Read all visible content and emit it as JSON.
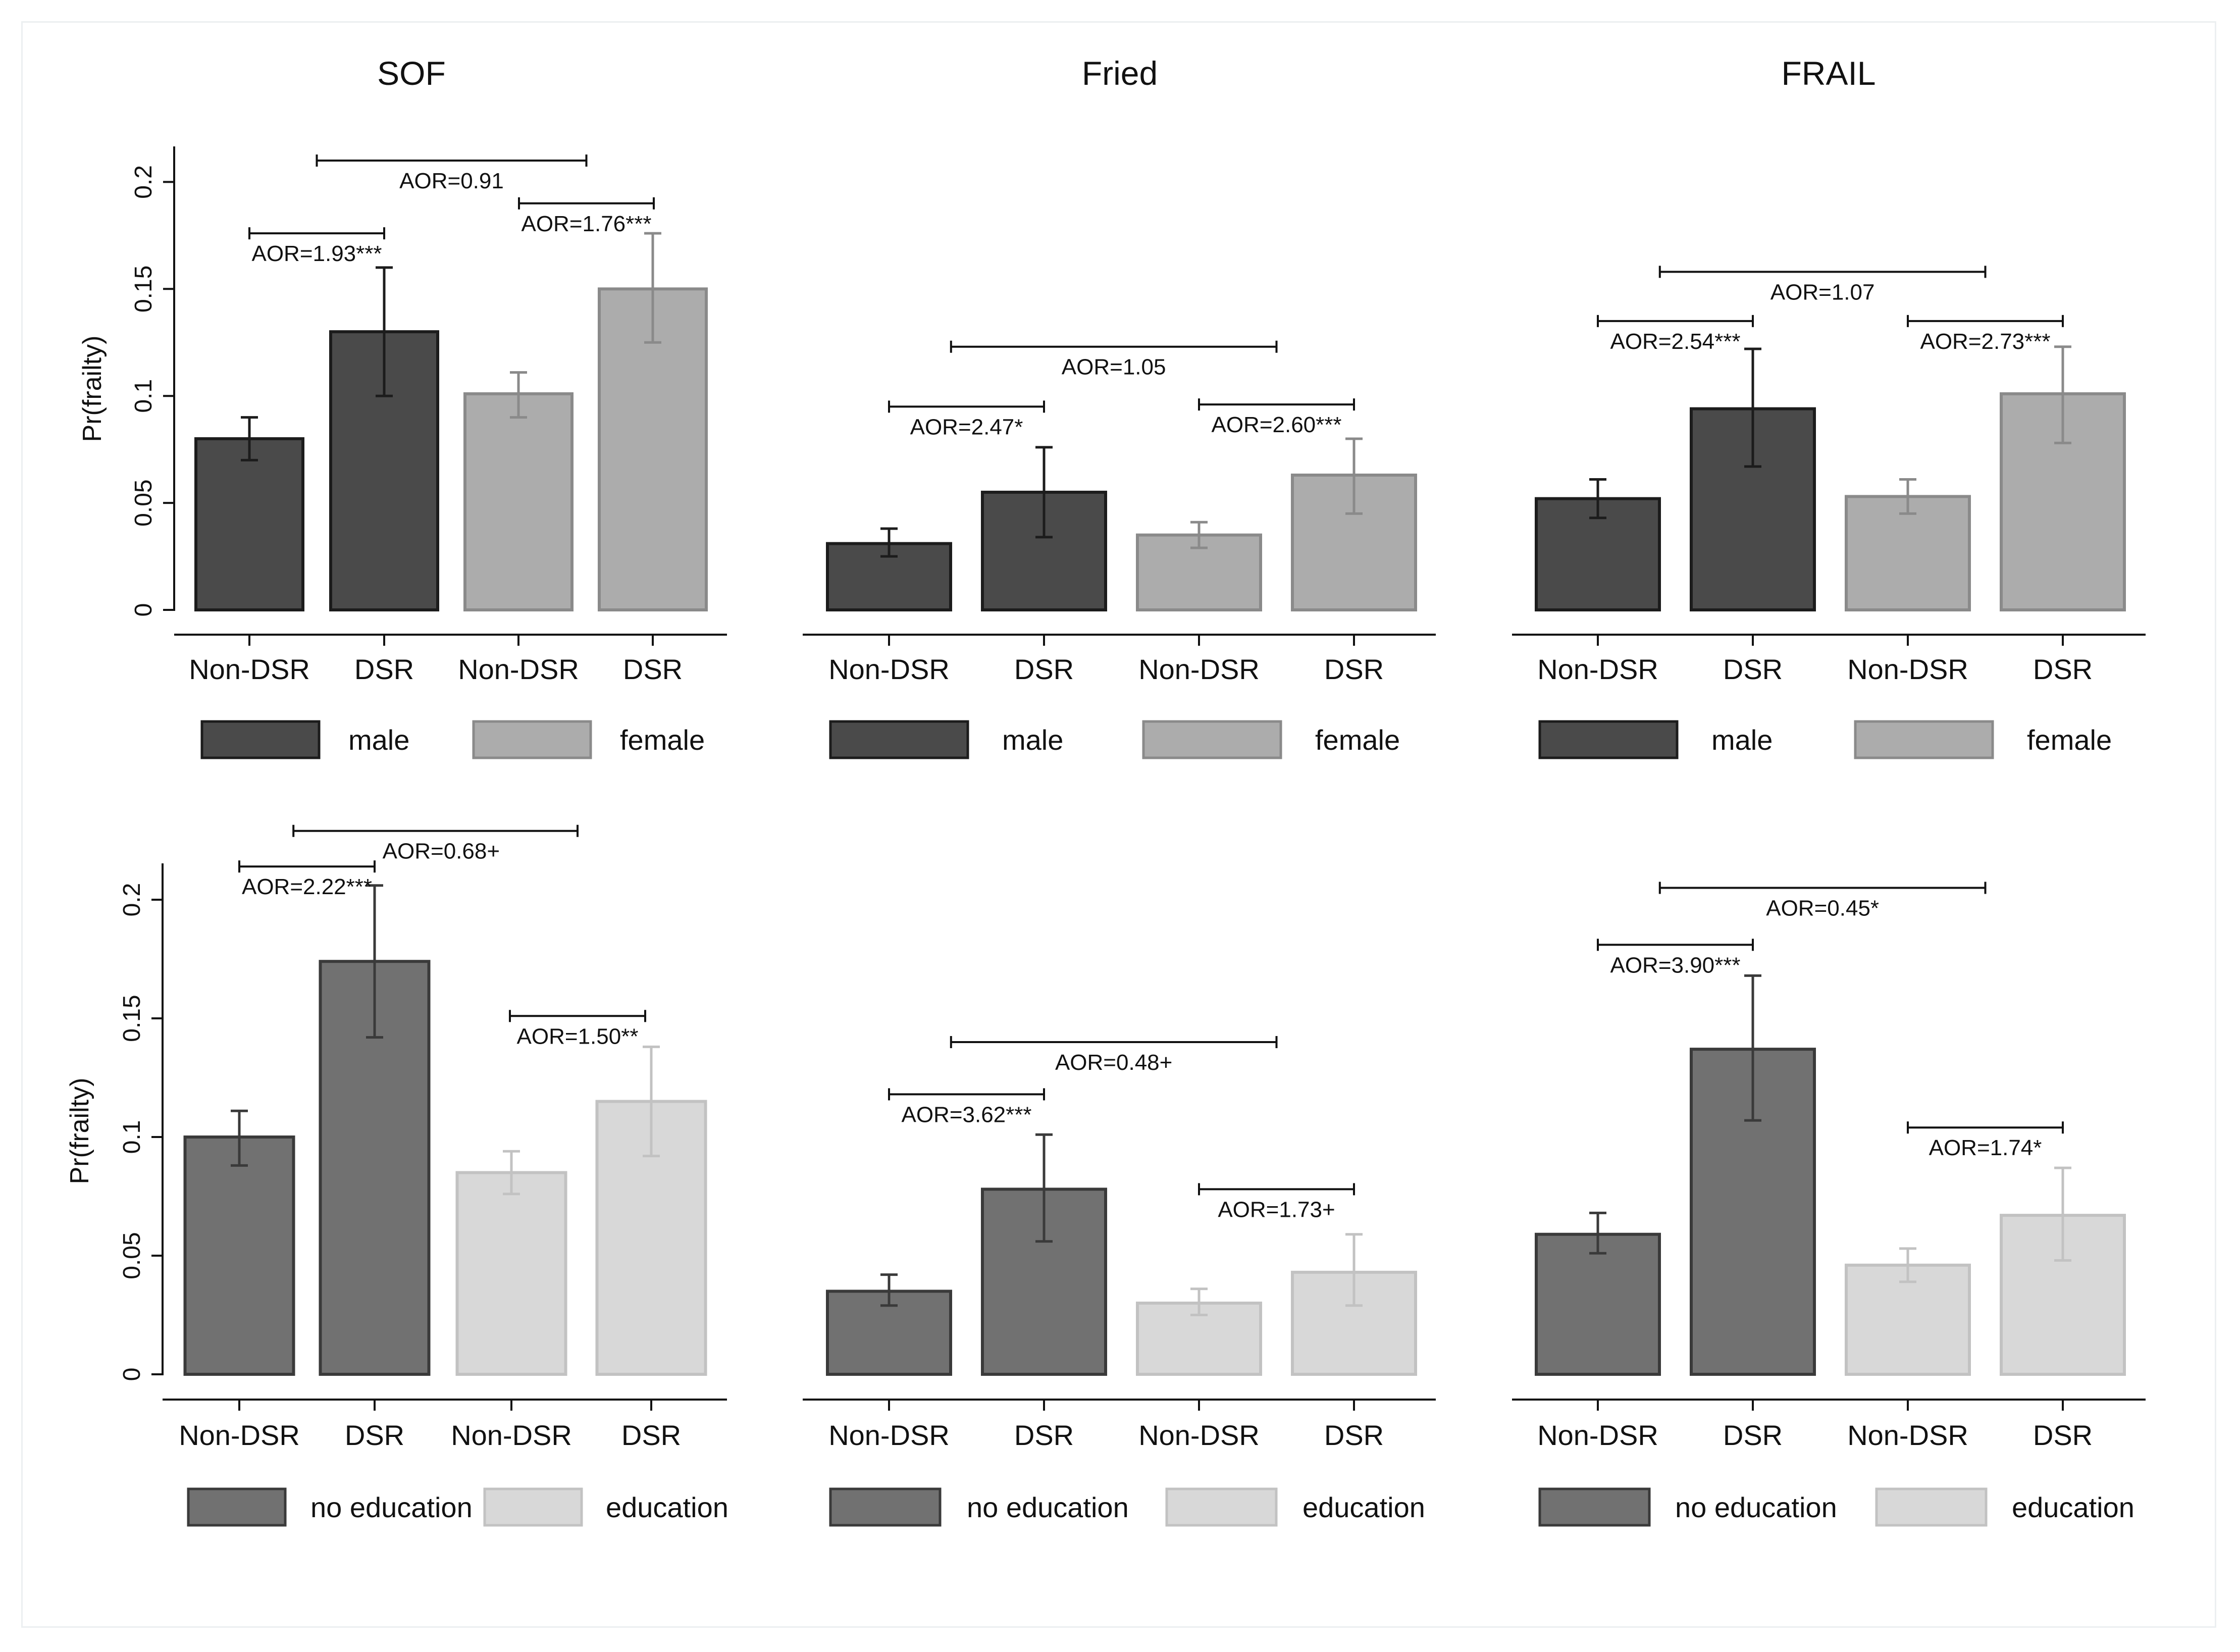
{
  "axis_label": "Pr(frailty)",
  "chart_data": [
    {
      "type": "bar",
      "title": "SOF",
      "ylabel": "Pr(frailty)",
      "ylim": [
        0,
        0.22
      ],
      "yticks": [
        0,
        0.05,
        0.1,
        0.15,
        0.2
      ],
      "ytick_labels": [
        "0",
        "0.05",
        "0.1",
        "0.15",
        "0.2"
      ],
      "categories": [
        "Non-DSR",
        "DSR",
        "Non-DSR",
        "DSR"
      ],
      "values": [
        0.08,
        0.13,
        0.101,
        0.15
      ],
      "ci_low": [
        0.07,
        0.1,
        0.09,
        0.125
      ],
      "ci_high": [
        0.09,
        0.16,
        0.111,
        0.176
      ],
      "groups": [
        0,
        0,
        1,
        1
      ],
      "legend": [
        "male",
        "female"
      ],
      "annotations": [
        {
          "label": "AOR=1.93***",
          "from": 0,
          "to": 1,
          "level": 0.176,
          "text_pos": "below"
        },
        {
          "label": "AOR=0.91",
          "from": 0.5,
          "to": 2.5,
          "level": 0.21,
          "text_pos": "below"
        },
        {
          "label": "AOR=1.76***",
          "from": 2,
          "to": 3,
          "level": 0.19,
          "text_pos": "below"
        }
      ]
    },
    {
      "type": "bar",
      "title": "Fried",
      "ylabel": "",
      "ylim": [
        0,
        0.22
      ],
      "categories": [
        "Non-DSR",
        "DSR",
        "Non-DSR",
        "DSR"
      ],
      "values": [
        0.031,
        0.055,
        0.035,
        0.063
      ],
      "ci_low": [
        0.025,
        0.034,
        0.029,
        0.045
      ],
      "ci_high": [
        0.038,
        0.076,
        0.041,
        0.08
      ],
      "groups": [
        0,
        0,
        1,
        1
      ],
      "legend": [
        "male",
        "female"
      ],
      "annotations": [
        {
          "label": "AOR=2.47*",
          "from": 0,
          "to": 1,
          "level": 0.095,
          "text_pos": "below"
        },
        {
          "label": "AOR=1.05",
          "from": 0.4,
          "to": 2.5,
          "level": 0.123,
          "text_pos": "below"
        },
        {
          "label": "AOR=2.60***",
          "from": 2,
          "to": 3,
          "level": 0.096,
          "text_pos": "below"
        }
      ]
    },
    {
      "type": "bar",
      "title": "FRAIL",
      "ylabel": "",
      "ylim": [
        0,
        0.22
      ],
      "categories": [
        "Non-DSR",
        "DSR",
        "Non-DSR",
        "DSR"
      ],
      "values": [
        0.052,
        0.094,
        0.053,
        0.101
      ],
      "ci_low": [
        0.043,
        0.067,
        0.045,
        0.078
      ],
      "ci_high": [
        0.061,
        0.122,
        0.061,
        0.123
      ],
      "groups": [
        0,
        0,
        1,
        1
      ],
      "legend": [
        "male",
        "female"
      ],
      "annotations": [
        {
          "label": "AOR=2.54***",
          "from": 0,
          "to": 1,
          "level": 0.135,
          "text_pos": "below"
        },
        {
          "label": "AOR=1.07",
          "from": 0.4,
          "to": 2.5,
          "level": 0.158,
          "text_pos": "below"
        },
        {
          "label": "AOR=2.73***",
          "from": 2,
          "to": 3,
          "level": 0.135,
          "text_pos": "below"
        }
      ]
    },
    {
      "type": "bar",
      "title": "",
      "ylabel": "Pr(frailty)",
      "ylim": [
        0,
        0.21
      ],
      "yticks": [
        0,
        0.05,
        0.1,
        0.15,
        0.2
      ],
      "ytick_labels": [
        "0",
        "0.05",
        "0.1",
        "0.15",
        "0.2"
      ],
      "categories": [
        "Non-DSR",
        "DSR",
        "Non-DSR",
        "DSR"
      ],
      "values": [
        0.1,
        0.174,
        0.085,
        0.115
      ],
      "ci_low": [
        0.088,
        0.142,
        0.076,
        0.092
      ],
      "ci_high": [
        0.111,
        0.206,
        0.094,
        0.138
      ],
      "groups": [
        0,
        0,
        1,
        1
      ],
      "legend": [
        "no education",
        "education"
      ],
      "annotations": [
        {
          "label": "AOR=2.22***",
          "from": 0,
          "to": 1,
          "level": 0.214,
          "text_pos": "below"
        },
        {
          "label": "AOR=0.68+",
          "from": 0.4,
          "to": 2.5,
          "level": 0.229,
          "text_pos": "below_right"
        },
        {
          "label": "AOR=1.50**",
          "from": 2,
          "to": 3,
          "level": 0.151,
          "text_pos": "below"
        }
      ]
    },
    {
      "type": "bar",
      "title": "",
      "ylabel": "",
      "ylim": [
        0,
        0.21
      ],
      "categories": [
        "Non-DSR",
        "DSR",
        "Non-DSR",
        "DSR"
      ],
      "values": [
        0.035,
        0.078,
        0.03,
        0.043
      ],
      "ci_low": [
        0.029,
        0.056,
        0.025,
        0.029
      ],
      "ci_high": [
        0.042,
        0.101,
        0.036,
        0.059
      ],
      "groups": [
        0,
        0,
        1,
        1
      ],
      "legend": [
        "no education",
        "education"
      ],
      "annotations": [
        {
          "label": "AOR=3.62***",
          "from": 0,
          "to": 1,
          "level": 0.118,
          "text_pos": "below"
        },
        {
          "label": "AOR=0.48+",
          "from": 0.4,
          "to": 2.5,
          "level": 0.14,
          "text_pos": "below"
        },
        {
          "label": "AOR=1.73+",
          "from": 2,
          "to": 3,
          "level": 0.078,
          "text_pos": "below"
        }
      ]
    },
    {
      "type": "bar",
      "title": "",
      "ylabel": "",
      "ylim": [
        0,
        0.21
      ],
      "categories": [
        "Non-DSR",
        "DSR",
        "Non-DSR",
        "DSR"
      ],
      "values": [
        0.059,
        0.137,
        0.046,
        0.067
      ],
      "ci_low": [
        0.051,
        0.107,
        0.039,
        0.048
      ],
      "ci_high": [
        0.068,
        0.168,
        0.053,
        0.087
      ],
      "groups": [
        0,
        0,
        1,
        1
      ],
      "legend": [
        "no education",
        "education"
      ],
      "annotations": [
        {
          "label": "AOR=3.90***",
          "from": 0,
          "to": 1,
          "level": 0.181,
          "text_pos": "below"
        },
        {
          "label": "AOR=0.45*",
          "from": 0.4,
          "to": 2.5,
          "level": 0.205,
          "text_pos": "below"
        },
        {
          "label": "AOR=1.74*",
          "from": 2,
          "to": 3,
          "level": 0.104,
          "text_pos": "below"
        }
      ]
    }
  ],
  "colors": {
    "row1": {
      "g0_fill": "#4a4a4a",
      "g0_stroke": "#1c1c1c",
      "g0_err": "#1c1c1c",
      "g1_fill": "#acacac",
      "g1_stroke": "#8a8a8a",
      "g1_err": "#8a8a8a"
    },
    "row2": {
      "g0_fill": "#717171",
      "g0_stroke": "#3a3a3a",
      "g0_err": "#3a3a3a",
      "g1_fill": "#d8d8d8",
      "g1_stroke": "#c2c2c2",
      "g1_err": "#c2c2c2"
    },
    "axis": "#111111"
  }
}
